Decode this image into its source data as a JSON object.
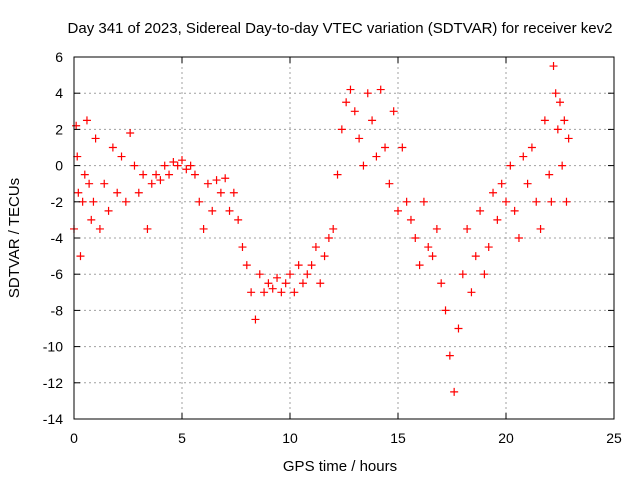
{
  "chart_data": {
    "type": "scatter",
    "title": "Day 341 of 2023, Sidereal Day-to-day VTEC variation (SDTVAR) for receiver kev2",
    "xlabel": "GPS time / hours",
    "ylabel": "SDTVAR / TECUs",
    "xlim": [
      0,
      25
    ],
    "ylim": [
      -14,
      6
    ],
    "xticks": [
      0,
      5,
      10,
      15,
      20,
      25
    ],
    "yticks": [
      -14,
      -12,
      -10,
      -8,
      -6,
      -4,
      -2,
      0,
      2,
      4,
      6
    ],
    "grid": true,
    "marker": "+",
    "color": "#ff0000",
    "series": [
      {
        "name": "kev2",
        "x": [
          0.0,
          0.1,
          0.15,
          0.2,
          0.3,
          0.4,
          0.5,
          0.6,
          0.7,
          0.8,
          0.9,
          1.0,
          1.2,
          1.4,
          1.6,
          1.8,
          2.0,
          2.2,
          2.4,
          2.6,
          2.8,
          3.0,
          3.2,
          3.4,
          3.6,
          3.8,
          4.0,
          4.2,
          4.4,
          4.6,
          4.8,
          5.0,
          5.2,
          5.4,
          5.6,
          5.8,
          6.0,
          6.2,
          6.4,
          6.6,
          6.8,
          7.0,
          7.2,
          7.4,
          7.6,
          7.8,
          8.0,
          8.2,
          8.4,
          8.6,
          8.8,
          9.0,
          9.2,
          9.4,
          9.6,
          9.8,
          10.0,
          10.2,
          10.4,
          10.6,
          10.8,
          11.0,
          11.2,
          11.4,
          11.6,
          11.8,
          12.0,
          12.2,
          12.4,
          12.6,
          12.8,
          13.0,
          13.2,
          13.4,
          13.6,
          13.8,
          14.0,
          14.2,
          14.4,
          14.6,
          14.8,
          15.0,
          15.2,
          15.4,
          15.6,
          15.8,
          16.0,
          16.2,
          16.4,
          16.6,
          16.8,
          17.0,
          17.2,
          17.4,
          17.6,
          17.8,
          18.0,
          18.2,
          18.4,
          18.6,
          18.8,
          19.0,
          19.2,
          19.4,
          19.6,
          19.8,
          20.0,
          20.2,
          20.4,
          20.6,
          20.8,
          21.0,
          21.2,
          21.4,
          21.6,
          21.8,
          22.0,
          22.1,
          22.2,
          22.3,
          22.4,
          22.5,
          22.6,
          22.7,
          22.8,
          22.9
        ],
        "y": [
          -3.5,
          2.2,
          0.5,
          -1.5,
          -5.0,
          -2.0,
          -0.5,
          2.5,
          -1.0,
          -3.0,
          -2.0,
          1.5,
          -3.5,
          -1.0,
          -2.5,
          1.0,
          -1.5,
          0.5,
          -2.0,
          1.8,
          0.0,
          -1.5,
          -0.5,
          -3.5,
          -1.0,
          -0.5,
          -0.8,
          0.0,
          -0.5,
          0.2,
          0.0,
          0.3,
          -0.2,
          0.0,
          -0.5,
          -2.0,
          -3.5,
          -1.0,
          -2.5,
          -0.8,
          -1.5,
          -0.7,
          -2.5,
          -1.5,
          -3.0,
          -4.5,
          -5.5,
          -7.0,
          -8.5,
          -6.0,
          -7.0,
          -6.5,
          -6.8,
          -6.2,
          -7.0,
          -6.5,
          -6.0,
          -7.0,
          -5.5,
          -6.5,
          -6.0,
          -5.5,
          -4.5,
          -6.5,
          -5.0,
          -4.0,
          -3.5,
          -0.5,
          2.0,
          3.5,
          4.2,
          3.0,
          1.5,
          0.0,
          4.0,
          2.5,
          0.5,
          4.2,
          1.0,
          -1.0,
          3.0,
          -2.5,
          1.0,
          -2.0,
          -3.0,
          -4.0,
          -5.5,
          -2.0,
          -4.5,
          -5.0,
          -3.5,
          -6.5,
          -8.0,
          -10.5,
          -12.5,
          -9.0,
          -6.0,
          -3.5,
          -7.0,
          -5.0,
          -2.5,
          -6.0,
          -4.5,
          -1.5,
          -3.0,
          -1.0,
          -2.0,
          0.0,
          -2.5,
          -4.0,
          0.5,
          -1.0,
          1.0,
          -2.0,
          -3.5,
          2.5,
          -0.5,
          -2.0,
          5.5,
          4.0,
          2.0,
          3.5,
          0.0,
          2.5,
          -2.0,
          1.5
        ]
      }
    ]
  }
}
